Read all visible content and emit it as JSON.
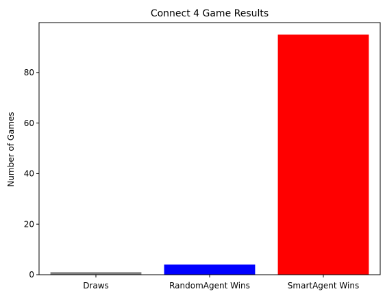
{
  "chart_data": {
    "type": "bar",
    "title": "Connect 4 Game Results",
    "xlabel": "",
    "ylabel": "Number of Games",
    "categories": [
      "Draws",
      "RandomAgent Wins",
      "SmartAgent Wins"
    ],
    "values": [
      1,
      4,
      95
    ],
    "colors": [
      "#808080",
      "#0000ff",
      "#ff0000"
    ],
    "ylim": [
      0,
      99.75
    ],
    "yticks": [
      0,
      20,
      40,
      60,
      80
    ],
    "grid": false
  }
}
